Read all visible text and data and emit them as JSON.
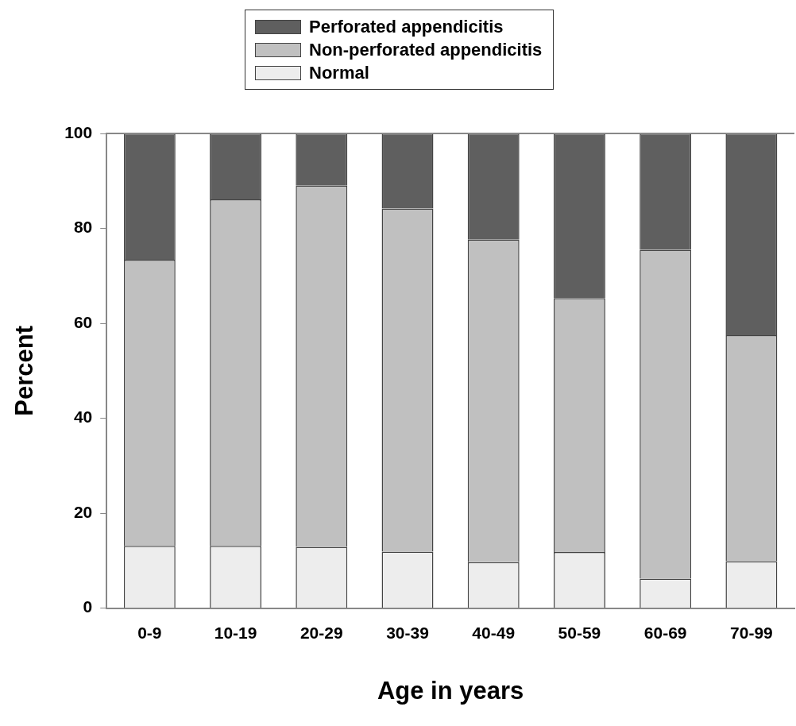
{
  "chart_data": {
    "type": "bar",
    "xlabel": "Age in years",
    "ylabel": "Percent",
    "categories": [
      "0-9",
      "10-19",
      "20-29",
      "30-39",
      "40-49",
      "50-59",
      "60-69",
      "70-99"
    ],
    "stacked": true,
    "ylim": [
      0,
      100
    ],
    "yticks": [
      0,
      20,
      40,
      60,
      80,
      100
    ],
    "grid": false,
    "legend": "top",
    "series": [
      {
        "name": "Normal",
        "color": "#ededed",
        "values": [
          13.1,
          13.1,
          12.9,
          11.9,
          9.7,
          11.8,
          6.2,
          9.9
        ]
      },
      {
        "name": "Non-perforated appendicitis",
        "color": "#c0c0c0",
        "values": [
          60.3,
          73.0,
          76.1,
          72.3,
          67.9,
          53.5,
          69.3,
          47.6
        ]
      },
      {
        "name": "Perforated appendicitis",
        "color": "#5f5f5f",
        "values": [
          26.6,
          13.9,
          11.0,
          15.8,
          22.4,
          34.7,
          24.5,
          42.5
        ]
      }
    ]
  }
}
